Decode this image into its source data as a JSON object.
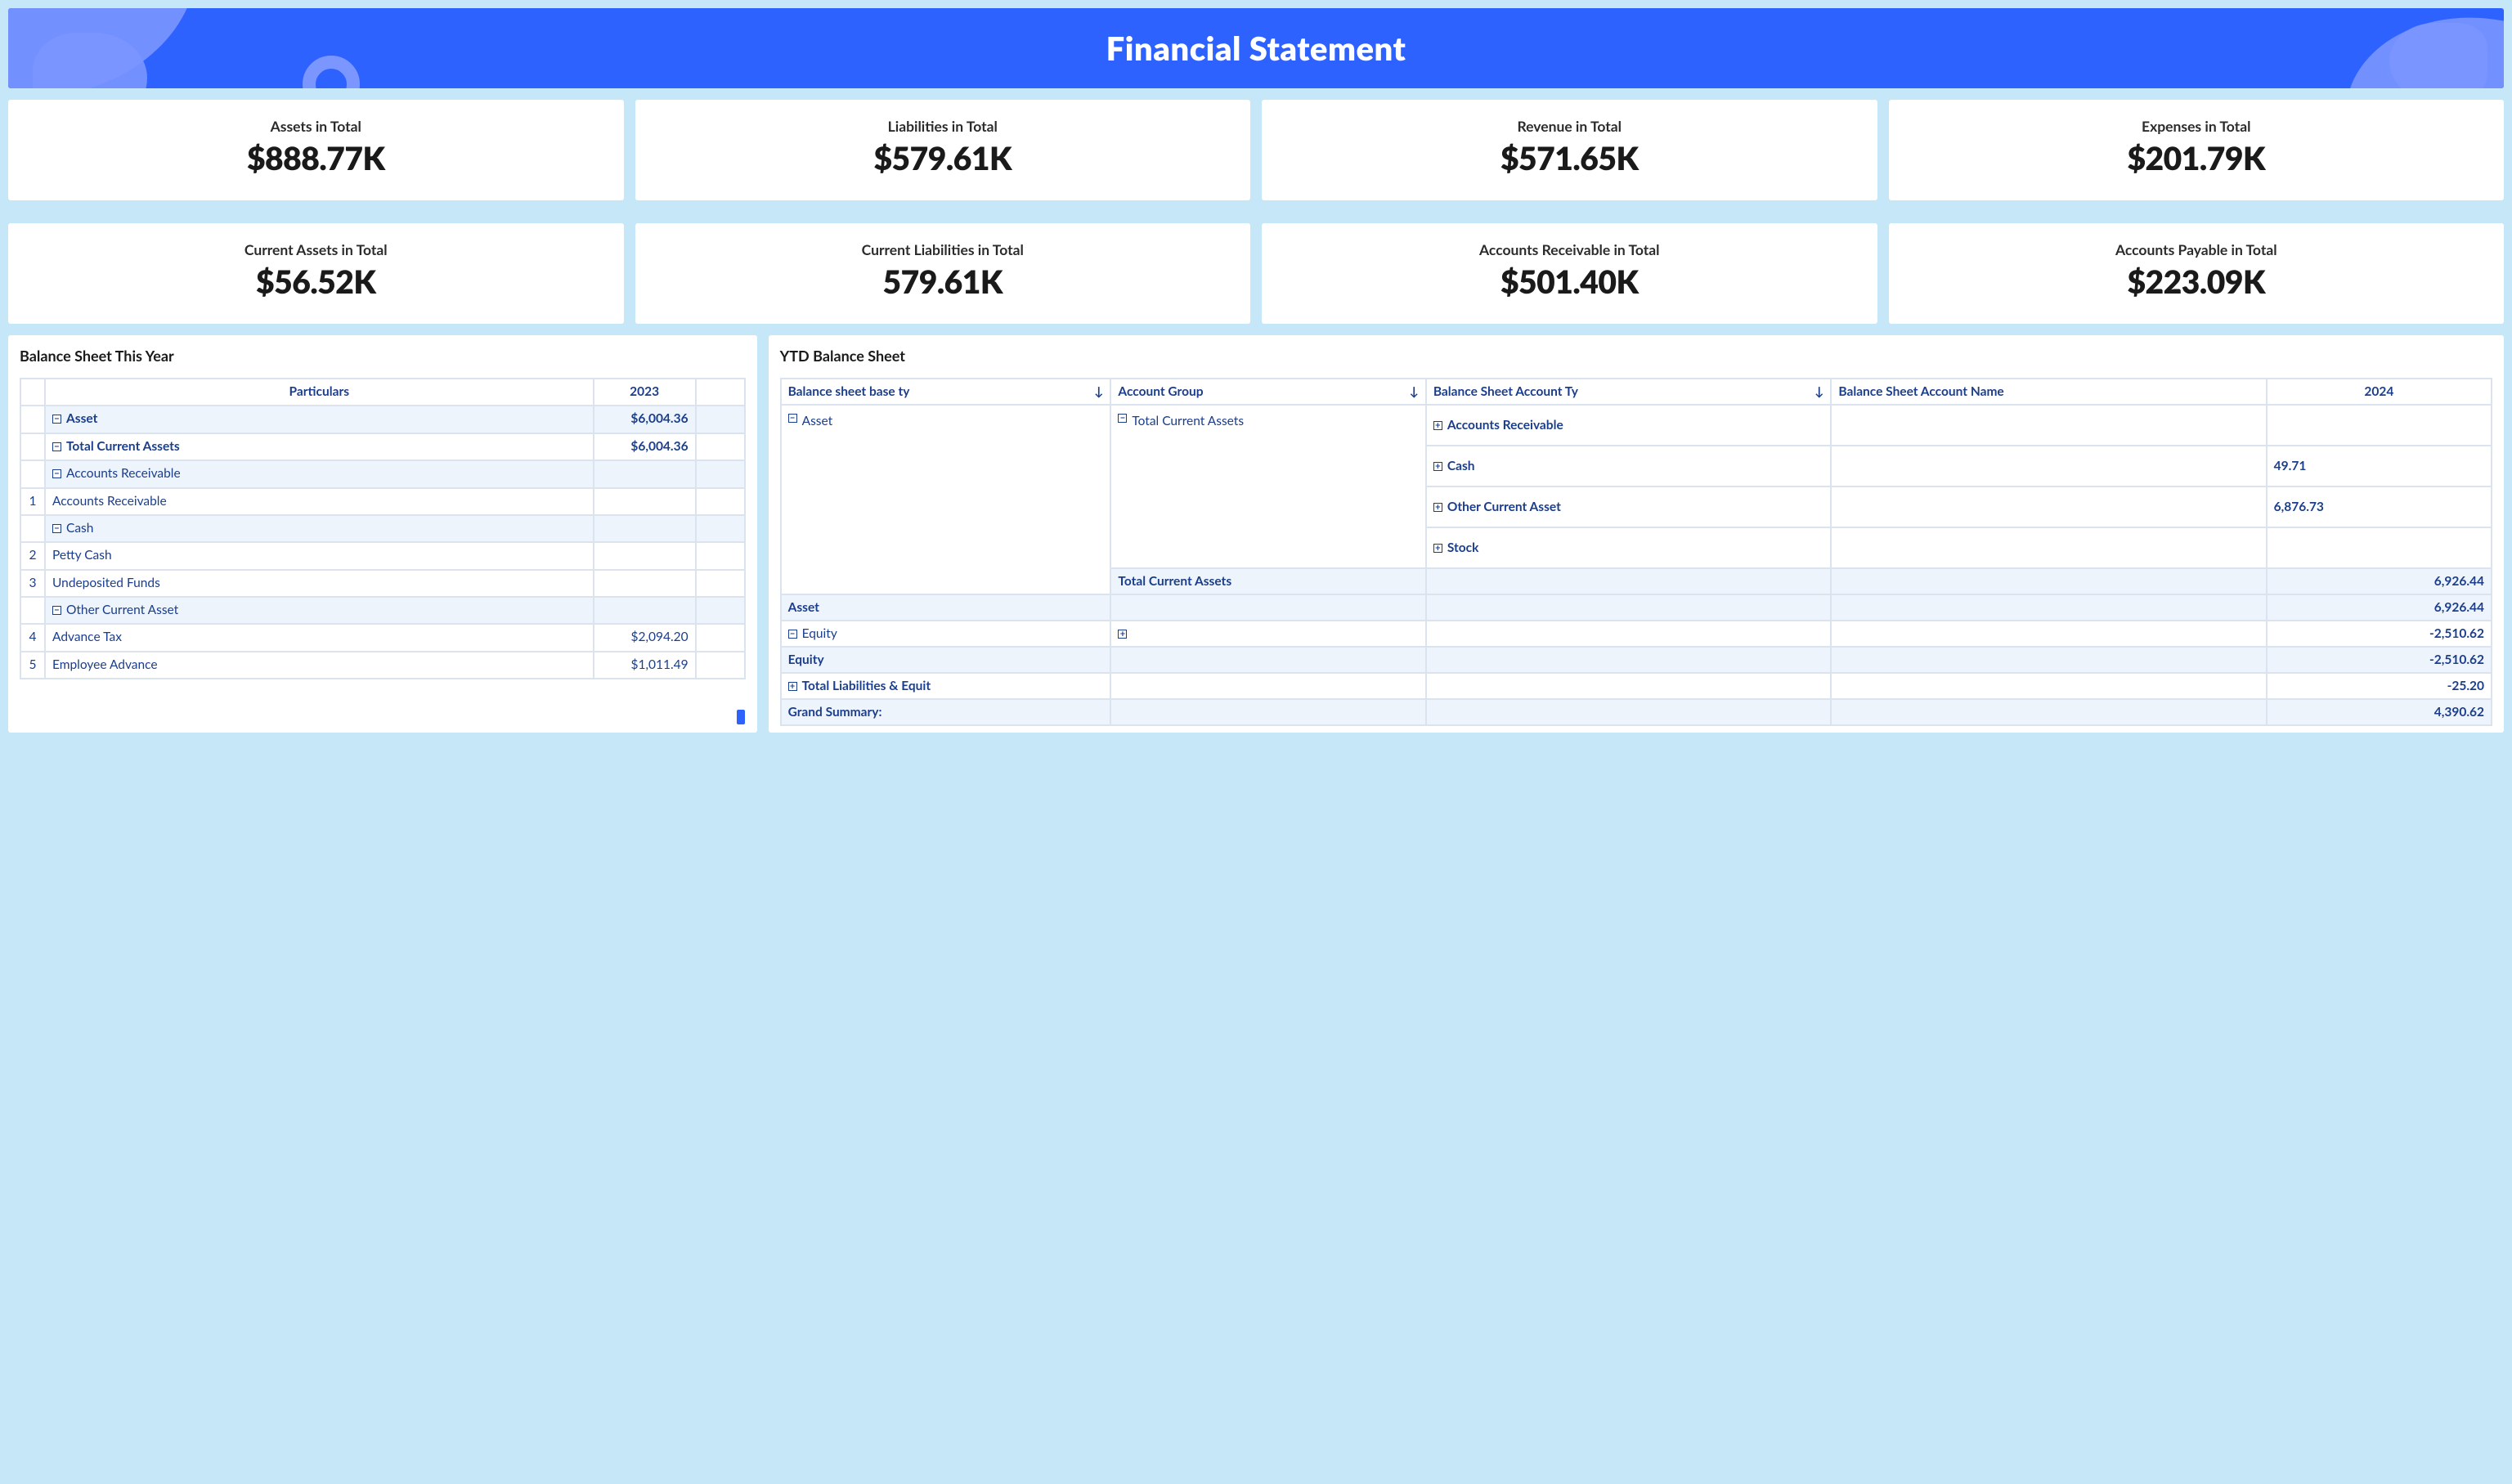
{
  "colors": {
    "page_bg": "#c6e7f7",
    "banner_bg": "#2e62ff",
    "banner_blob": "#7b96ff",
    "card_bg": "#ffffff",
    "text_dark": "#1a1a1a",
    "text_blue": "#1b3e8c",
    "row_band": "#eef4fb",
    "cell_border": "#dbe3ee"
  },
  "header": {
    "title": "Financial Statement"
  },
  "kpi_rows": [
    [
      {
        "label": "Assets in Total",
        "value": "$888.77K"
      },
      {
        "label": "Liabilities in Total",
        "value": "$579.61K"
      },
      {
        "label": "Revenue in Total",
        "value": "$571.65K"
      },
      {
        "label": "Expenses in Total",
        "value": "$201.79K"
      }
    ],
    [
      {
        "label": "Current Assets in Total",
        "value": "$56.52K"
      },
      {
        "label": "Current Liabilities in Total",
        "value": "579.61K"
      },
      {
        "label": "Accounts Receivable in Total",
        "value": "$501.40K"
      },
      {
        "label": "Accounts Payable in Total",
        "value": "$223.09K"
      }
    ]
  ],
  "left_panel": {
    "title": "Balance Sheet This Year",
    "columns": {
      "particulars": "Particulars",
      "year": "2023"
    },
    "rows": [
      {
        "idx": "",
        "indent": 1,
        "toggle": "minus",
        "label": "Asset",
        "value": "$6,004.36",
        "bold": true,
        "band": true
      },
      {
        "idx": "",
        "indent": 1,
        "toggle": "minus",
        "label": "Total Current Assets",
        "value": "$6,004.36",
        "bold": true
      },
      {
        "idx": "",
        "indent": 2,
        "toggle": "minus",
        "label": "Accounts Receivable",
        "value": "",
        "band": true
      },
      {
        "idx": "1",
        "indent": 3,
        "label": "Accounts Receivable",
        "value": ""
      },
      {
        "idx": "",
        "indent": 2,
        "toggle": "minus",
        "label": "Cash",
        "value": "",
        "band": true
      },
      {
        "idx": "2",
        "indent": 3,
        "label": "Petty Cash",
        "value": ""
      },
      {
        "idx": "3",
        "indent": 3,
        "label": "Undeposited Funds",
        "value": ""
      },
      {
        "idx": "",
        "indent": 2,
        "toggle": "minus",
        "label": "Other Current Asset",
        "value": "",
        "band": true
      },
      {
        "idx": "4",
        "indent": 3,
        "label": "Advance Tax",
        "value": "$2,094.20"
      },
      {
        "idx": "5",
        "indent": 3,
        "label": "Employee Advance",
        "value": "$1,011.49"
      }
    ]
  },
  "right_panel": {
    "title": "YTD Balance Sheet",
    "columns": [
      {
        "label": "Balance sheet base ty",
        "sort": true
      },
      {
        "label": "Account Group",
        "sort": true
      },
      {
        "label": "Balance Sheet Account Ty",
        "sort": true
      },
      {
        "label": "Balance Sheet Account Name",
        "sort": false
      },
      {
        "label": "2024",
        "sort": false
      }
    ],
    "sort_glyph": "↓",
    "body": {
      "asset_label": "Asset",
      "account_group_label": "Total Current Assets",
      "account_group_toggle": "minus",
      "account_types": [
        {
          "toggle": "plus",
          "label": "Accounts Receivable",
          "value": ""
        },
        {
          "toggle": "plus",
          "label": "Cash",
          "value": "49.71"
        },
        {
          "toggle": "plus",
          "label": "Other Current Asset",
          "value": "6,876.73"
        },
        {
          "toggle": "plus",
          "label": "Stock",
          "value": ""
        }
      ],
      "tca_total_label": "Total Current Assets",
      "tca_total_value": "6,926.44",
      "asset_total_label": "Asset",
      "asset_total_value": "6,926.44",
      "equity_label": "Equity",
      "equity_toggle": "minus",
      "equity_group_toggle": "plus",
      "equity_value": "-2,510.62",
      "equity_total_label": "Equity",
      "equity_total_value": "-2,510.62",
      "tle_label": "Total Liabilities & Equit",
      "tle_toggle": "plus",
      "tle_value": "-25.20",
      "grand_label": "Grand Summary:",
      "grand_value": "4,390.62"
    }
  }
}
